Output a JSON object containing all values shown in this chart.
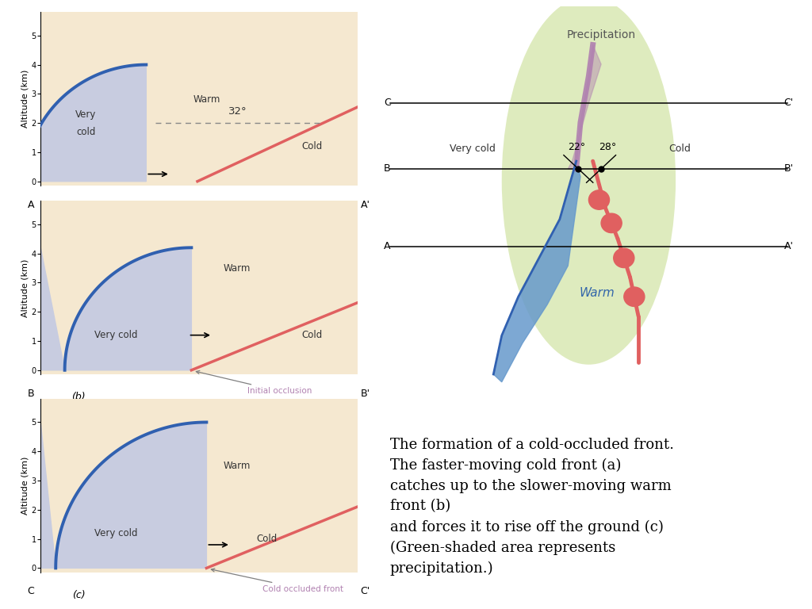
{
  "bg_color": "#ffffff",
  "panel_bg_warm": "#f5e8d0",
  "panel_bg_cold": "#dcdce8",
  "panel_bg_verycold": "#d0d0e0",
  "cold_front_color": "#3060b0",
  "warm_front_color": "#e06060",
  "occluded_color": "#b080b0",
  "blue_fill": "#c8cce0",
  "green_shaded": "#ddeabb",
  "precipitation_label": "Precipitation",
  "very_cold_label": "Very cold",
  "warm_label": "Warm",
  "cold_label": "Cold",
  "initial_occlusion_label": "Initial occlusion",
  "cold_occluded_label": "Cold occluded front",
  "angle_a": "32°",
  "angle_b22": "22°",
  "angle_b28": "28°",
  "caption_lines": [
    "The formation of a cold-occluded front.",
    "The faster-moving cold front (a)",
    "catches up to the slower-moving warm",
    "front (b)",
    "and forces it to rise off the ground (c)",
    "(Green-shaded area represents",
    "precipitation.)"
  ],
  "caption_fontsize": 13,
  "axis_label_fontsize": 8,
  "tick_fontsize": 7,
  "annotation_fontsize": 8.5
}
